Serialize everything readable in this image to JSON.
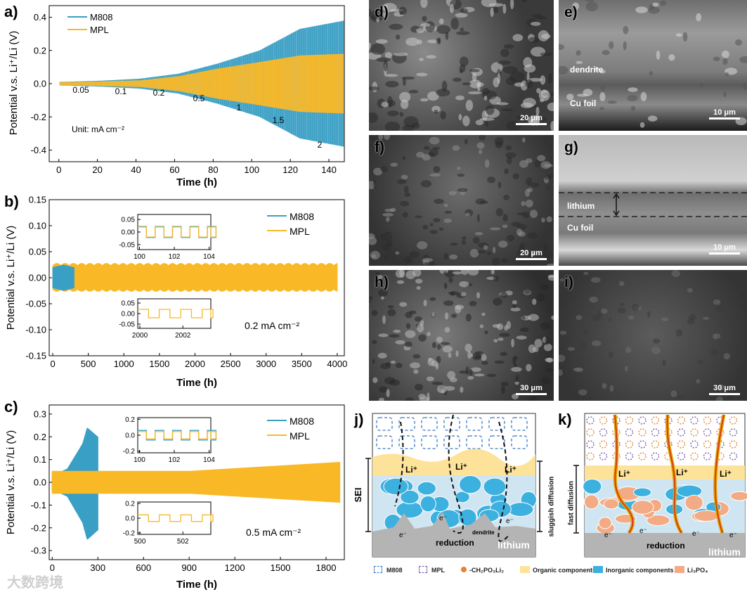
{
  "colors": {
    "m808": "#3a9fc4",
    "mpl": "#f9b826",
    "organic": "#fde39a",
    "inorganic": "#3cb0de",
    "li3po4": "#f2ab84",
    "lithium": "#b4b4b4"
  },
  "panel_a": {
    "label": "a)",
    "ylabel": "Potential v.s. Li⁺/Li (V)",
    "xlabel": "Time (h)",
    "unit_note": "Unit: mA cm⁻²",
    "legend": [
      "M808",
      "MPL"
    ],
    "rate_labels": [
      "0.05",
      "0.1",
      "0.2",
      "0.5",
      "1",
      "1.5",
      "2"
    ],
    "xticks": [
      "0",
      "20",
      "40",
      "60",
      "80",
      "100",
      "120",
      "140"
    ],
    "yticks": [
      "-0.4",
      "-0.2",
      "0.0",
      "0.2",
      "0.4"
    ]
  },
  "panel_b": {
    "label": "b)",
    "ylabel": "Potential v.s. Li⁺/Li (V)",
    "xlabel": "Time (h)",
    "note": "0.2 mA cm⁻²",
    "legend": [
      "M808",
      "MPL"
    ],
    "xticks": [
      "0",
      "500",
      "1000",
      "1500",
      "2000",
      "2500",
      "3000",
      "3500",
      "4000"
    ],
    "yticks": [
      "-0.15",
      "-0.10",
      "-0.05",
      "0.00",
      "0.05",
      "0.10",
      "0.15"
    ],
    "inset1": {
      "xticks": [
        "100",
        "102",
        "104"
      ],
      "yticks": [
        "0.05",
        "0.00",
        "-0.05"
      ]
    },
    "inset2": {
      "xticks": [
        "2000",
        "2002"
      ],
      "yticks": [
        "0.05",
        "0.00",
        "-0.05"
      ]
    }
  },
  "panel_c": {
    "label": "c)",
    "ylabel": "Potential v.s. Li⁺/Li (V)",
    "xlabel": "Time (h)",
    "note": "0.5 mA cm⁻²",
    "legend": [
      "M808",
      "MPL"
    ],
    "xticks": [
      "0",
      "300",
      "600",
      "900",
      "1200",
      "1500",
      "1800"
    ],
    "yticks": [
      "-0.3",
      "-0.2",
      "-0.1",
      "0.0",
      "0.1",
      "0.2",
      "0.3"
    ],
    "inset1": {
      "xticks": [
        "100",
        "102",
        "104"
      ],
      "yticks": [
        "0.2",
        "0.0",
        "-0.2"
      ]
    },
    "inset2": {
      "xticks": [
        "500",
        "502"
      ],
      "yticks": [
        "0.2",
        "0.0",
        "-0.2"
      ]
    }
  },
  "sem": {
    "d": {
      "label": "d)",
      "scale": "20 μm"
    },
    "e": {
      "label": "e)",
      "scale": "10 μm",
      "text1": "dendrite",
      "text2": "Cu foil"
    },
    "f": {
      "label": "f)",
      "scale": "20 μm"
    },
    "g": {
      "label": "g)",
      "scale": "10 μm",
      "text1": "lithium",
      "text2": "Cu foil"
    },
    "h": {
      "label": "h)",
      "scale": "30 μm"
    },
    "i": {
      "label": "i)",
      "scale": "30 μm"
    }
  },
  "schematic_j": {
    "label": "j)",
    "sei": "SEI",
    "side": "sluggish diffusion",
    "li": "Li⁺",
    "e": "e⁻",
    "reduction": "reduction",
    "dendrite": "dendrite",
    "lithium": "lithium"
  },
  "schematic_k": {
    "label": "k)",
    "side": "fast diffusion",
    "li": "Li⁺",
    "e": "e⁻",
    "reduction": "reduction",
    "lithium": "lithium"
  },
  "legend_bottom": {
    "m808": "M808",
    "mpl": "MPL",
    "ch2": "-CH₂PO₃Li₂",
    "organic": "Organic components",
    "inorganic": "Inorganic components",
    "li3po4": "Li₃PO₄"
  },
  "watermark": "大数跨境",
  "chart_data": [
    {
      "type": "line",
      "title": "",
      "xlabel": "Time (h)",
      "ylabel": "Potential v.s. Li⁺/Li (V)",
      "xlim": [
        -5,
        148
      ],
      "ylim": [
        -0.47,
        0.47
      ],
      "series": [
        {
          "name": "M808",
          "note": "rate steps, amplitude V",
          "x": [
            0,
            22,
            42,
            62,
            82,
            104,
            125,
            148
          ],
          "amp": [
            0.01,
            0.018,
            0.03,
            0.06,
            0.12,
            0.2,
            0.33,
            0.38
          ]
        },
        {
          "name": "MPL",
          "x": [
            0,
            22,
            42,
            62,
            82,
            104,
            125,
            148
          ],
          "amp": [
            0.008,
            0.014,
            0.02,
            0.045,
            0.09,
            0.13,
            0.17,
            0.18
          ]
        }
      ]
    },
    {
      "type": "line",
      "title": "",
      "xlabel": "Time (h)",
      "ylabel": "Potential v.s. Li⁺/Li (V)",
      "xlim": [
        -50,
        4100
      ],
      "ylim": [
        -0.15,
        0.15
      ],
      "series": [
        {
          "name": "M808",
          "x": [
            0,
            150,
            300
          ],
          "amp": [
            0.02,
            0.025,
            0.02
          ]
        },
        {
          "name": "MPL",
          "x": [
            0,
            4000
          ],
          "amp": [
            0.026,
            0.026
          ]
        }
      ]
    },
    {
      "type": "line",
      "title": "",
      "xlabel": "Time (h)",
      "ylabel": "Potential v.s. Li⁺/Li (V)",
      "xlim": [
        -20,
        1920
      ],
      "ylim": [
        -0.34,
        0.34
      ],
      "series": [
        {
          "name": "M808",
          "x": [
            0,
            100,
            200,
            230,
            300
          ],
          "amp": [
            0.03,
            0.06,
            0.17,
            0.24,
            0.2
          ]
        },
        {
          "name": "MPL",
          "x": [
            0,
            900,
            1900
          ],
          "amp": [
            0.05,
            0.05,
            0.09
          ]
        }
      ]
    }
  ]
}
